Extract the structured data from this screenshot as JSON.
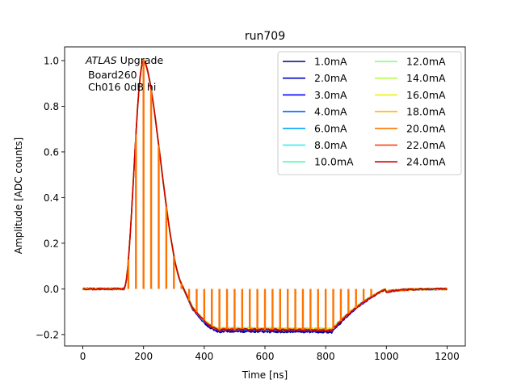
{
  "chart_data": {
    "type": "line",
    "title": "run709",
    "xlabel": "Time [ns]",
    "ylabel": "Amplitude [ADC counts]",
    "xlim": [
      -60,
      1260
    ],
    "ylim": [
      -0.25,
      1.06
    ],
    "xticks": [
      0,
      200,
      400,
      600,
      800,
      1000,
      1200
    ],
    "xtick_labels": [
      "0",
      "200",
      "400",
      "600",
      "800",
      "1000",
      "1200"
    ],
    "yticks": [
      -0.2,
      0.0,
      0.2,
      0.4,
      0.6,
      0.8,
      1.0
    ],
    "ytick_labels": [
      "−0.2",
      "0.0",
      "0.2",
      "0.4",
      "0.6",
      "0.8",
      "1.0"
    ],
    "annotation": {
      "line1_italic": "ATLAS",
      "line1_rest": " Upgrade",
      "line2": "Board260",
      "line3": "Ch016 0dB hi"
    },
    "legend_position": "upper right",
    "pulse_shape": {
      "baseline": 0.0,
      "onset_ns": 135,
      "peak_ns": 200,
      "peak_value": 1.0,
      "zero_cross_ns": 340,
      "undershoot_min": -0.175,
      "undershoot_flat_until_ns": 820,
      "recover_ns": 1000,
      "end_ns": 1200
    },
    "series": [
      {
        "name": "1.0mA",
        "color": "#00007f",
        "undershoot": -0.19
      },
      {
        "name": "2.0mA",
        "color": "#0000c8",
        "undershoot": -0.188
      },
      {
        "name": "3.0mA",
        "color": "#0000ff",
        "undershoot": -0.186
      },
      {
        "name": "4.0mA",
        "color": "#0060ff",
        "undershoot": -0.182
      },
      {
        "name": "6.0mA",
        "color": "#00a4ff",
        "undershoot": -0.178
      },
      {
        "name": "8.0mA",
        "color": "#1cf2f2",
        "undershoot": -0.175
      },
      {
        "name": "10.0mA",
        "color": "#4affad",
        "undershoot": -0.175
      },
      {
        "name": "12.0mA",
        "color": "#7cff79",
        "undershoot": -0.175
      },
      {
        "name": "14.0mA",
        "color": "#b0ff46",
        "undershoot": -0.176
      },
      {
        "name": "16.0mA",
        "color": "#e8f410",
        "undershoot": -0.177
      },
      {
        "name": "18.0mA",
        "color": "#ffb900",
        "undershoot": -0.178
      },
      {
        "name": "20.0mA",
        "color": "#ff7300",
        "undershoot": -0.179,
        "sampled": true
      },
      {
        "name": "22.0mA",
        "color": "#ff2e00",
        "undershoot": -0.18
      },
      {
        "name": "24.0mA",
        "color": "#c80000",
        "undershoot": -0.181
      }
    ],
    "sample_spacing_ns": 25,
    "sample_start_ns": 150
  }
}
